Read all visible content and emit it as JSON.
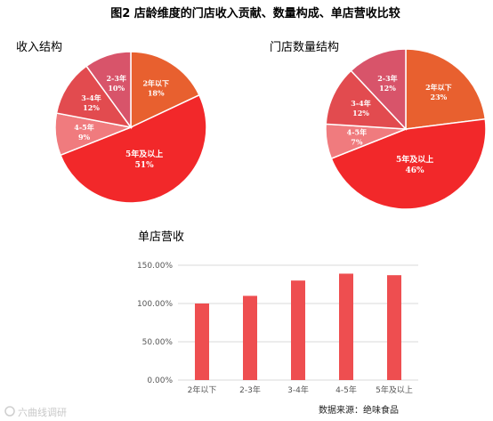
{
  "figure_title": "图2 店龄维度的门店收入贡献、数量构成、单店营收比较",
  "source_note": "数据来源：绝味食品",
  "watermark": "六曲线调研",
  "colors": {
    "2年以下": "#e8602f",
    "2-3年": "#d8546a",
    "3-4年": "#e24b4f",
    "4-5年": "#f07b7e",
    "5年及以上": "#f2282a",
    "bar": "#ee4e50",
    "grid": "#d9d9d9"
  },
  "chart_data": [
    {
      "type": "pie",
      "title": "收入结构",
      "slices": [
        {
          "label": "2年以下",
          "percent": "18%",
          "value": 18
        },
        {
          "label": "5年及以上",
          "percent": "51%",
          "value": 51
        },
        {
          "label": "4-5年",
          "percent": "9%",
          "value": 9
        },
        {
          "label": "3-4年",
          "percent": "12%",
          "value": 12
        },
        {
          "label": "2-3年",
          "percent": "10%",
          "value": 10
        }
      ]
    },
    {
      "type": "pie",
      "title": "门店数量结构",
      "slices": [
        {
          "label": "2年以下",
          "percent": "23%",
          "value": 23
        },
        {
          "label": "5年及以上",
          "percent": "46%",
          "value": 46
        },
        {
          "label": "4-5年",
          "percent": "7%",
          "value": 7
        },
        {
          "label": "3-4年",
          "percent": "12%",
          "value": 12
        },
        {
          "label": "2-3年",
          "percent": "12%",
          "value": 12
        }
      ]
    },
    {
      "type": "bar",
      "title": "单店营收",
      "categories": [
        "2年以下",
        "2-3年",
        "3-4年",
        "4-5年",
        "5年及以上"
      ],
      "values": [
        100,
        110,
        130,
        139,
        137
      ],
      "ylim": [
        0,
        150
      ],
      "yticks": [
        0,
        50,
        100,
        150
      ],
      "ytick_labels": [
        "0.00%",
        "50.00%",
        "100.00%",
        "150.00%"
      ],
      "grid": true
    }
  ]
}
